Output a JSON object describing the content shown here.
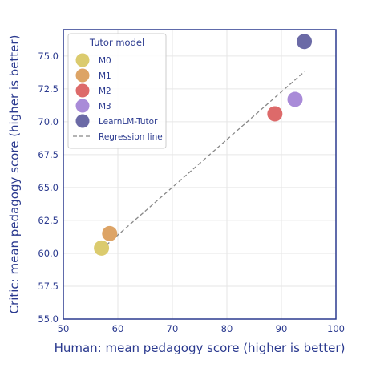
{
  "chart_data": {
    "type": "scatter",
    "xlabel": "Human: mean pedagogy score (higher is better)",
    "ylabel": "Critic: mean pedagogy score (higher is better)",
    "xlim": [
      50,
      100
    ],
    "ylim": [
      55,
      77
    ],
    "xticks": [
      "50",
      "60",
      "70",
      "80",
      "90",
      "100"
    ],
    "yticks": [
      "55.0",
      "57.5",
      "60.0",
      "62.5",
      "65.0",
      "67.5",
      "70.0",
      "72.5",
      "75.0"
    ],
    "grid": true,
    "legend": {
      "title": "Tutor model",
      "placement": "top-left"
    },
    "series": [
      {
        "name": "M0",
        "x": 57.0,
        "y": 60.4,
        "color": "#dbcb6e"
      },
      {
        "name": "M1",
        "x": 58.5,
        "y": 61.5,
        "color": "#dda466"
      },
      {
        "name": "M2",
        "x": 88.8,
        "y": 70.6,
        "color": "#dd6a6a"
      },
      {
        "name": "M3",
        "x": 92.5,
        "y": 71.7,
        "color": "#a98bd8"
      },
      {
        "name": "LearnLM-Tutor",
        "x": 94.2,
        "y": 76.1,
        "color": "#6b6aa6"
      }
    ],
    "regression": {
      "name": "Regression line",
      "x": [
        57.0,
        94.2
      ],
      "y": [
        60.3,
        73.8
      ],
      "color": "#888888"
    }
  }
}
